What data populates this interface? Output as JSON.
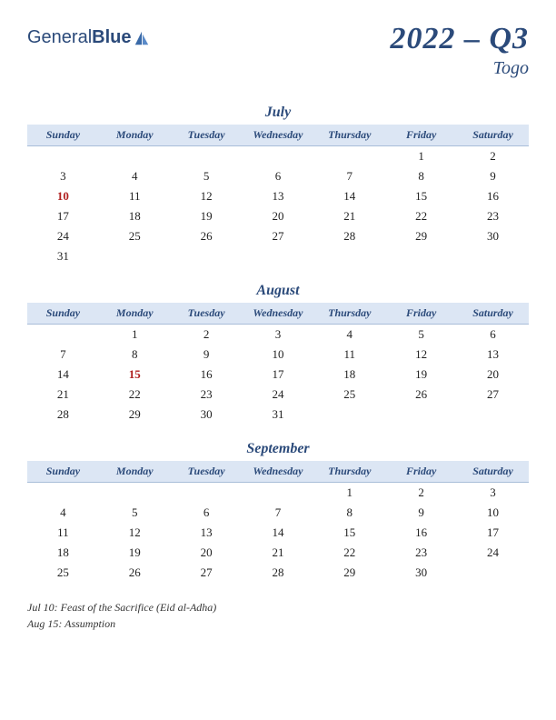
{
  "logo": {
    "part1": "General",
    "part2": "Blue"
  },
  "title": "2022 – Q3",
  "country": "Togo",
  "colors": {
    "header_bg": "#dce6f4",
    "accent": "#2b4a7a",
    "holiday": "#b02020",
    "text": "#222222",
    "border": "#a8bdd8"
  },
  "day_headers": [
    "Sunday",
    "Monday",
    "Tuesday",
    "Wednesday",
    "Thursday",
    "Friday",
    "Saturday"
  ],
  "months": [
    {
      "name": "July",
      "rows": [
        [
          "",
          "",
          "",
          "",
          "",
          "1",
          "2"
        ],
        [
          "3",
          "4",
          "5",
          "6",
          "7",
          "8",
          "9"
        ],
        [
          "10",
          "11",
          "12",
          "13",
          "14",
          "15",
          "16"
        ],
        [
          "17",
          "18",
          "19",
          "20",
          "21",
          "22",
          "23"
        ],
        [
          "24",
          "25",
          "26",
          "27",
          "28",
          "29",
          "30"
        ],
        [
          "31",
          "",
          "",
          "",
          "",
          "",
          ""
        ]
      ],
      "holidays": [
        "10"
      ]
    },
    {
      "name": "August",
      "rows": [
        [
          "",
          "1",
          "2",
          "3",
          "4",
          "5",
          "6"
        ],
        [
          "7",
          "8",
          "9",
          "10",
          "11",
          "12",
          "13"
        ],
        [
          "14",
          "15",
          "16",
          "17",
          "18",
          "19",
          "20"
        ],
        [
          "21",
          "22",
          "23",
          "24",
          "25",
          "26",
          "27"
        ],
        [
          "28",
          "29",
          "30",
          "31",
          "",
          "",
          ""
        ]
      ],
      "holidays": [
        "15"
      ]
    },
    {
      "name": "September",
      "rows": [
        [
          "",
          "",
          "",
          "",
          "1",
          "2",
          "3"
        ],
        [
          "4",
          "5",
          "6",
          "7",
          "8",
          "9",
          "10"
        ],
        [
          "11",
          "12",
          "13",
          "14",
          "15",
          "16",
          "17"
        ],
        [
          "18",
          "19",
          "20",
          "21",
          "22",
          "23",
          "24"
        ],
        [
          "25",
          "26",
          "27",
          "28",
          "29",
          "30",
          ""
        ]
      ],
      "holidays": []
    }
  ],
  "holiday_list": [
    "Jul 10: Feast of the Sacrifice (Eid al-Adha)",
    "Aug 15: Assumption"
  ]
}
